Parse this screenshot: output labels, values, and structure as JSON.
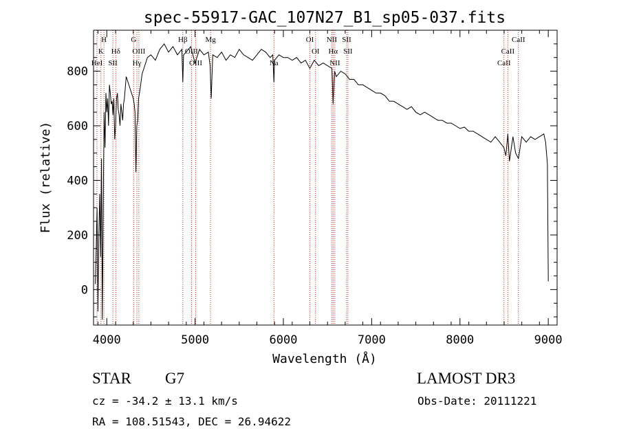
{
  "chart_data": {
    "type": "line",
    "title": "spec-55917-GAC_107N27_B1_sp05-037.fits",
    "xlabel": "Wavelength (Å)",
    "ylabel": "Flux (relative)",
    "xlim": [
      3850,
      9100
    ],
    "ylim": [
      -130,
      950
    ],
    "xticks": [
      4000,
      5000,
      6000,
      7000,
      8000,
      9000
    ],
    "yticks": [
      0,
      200,
      400,
      600,
      800
    ],
    "grid": false,
    "line_color": "#000000",
    "marker_color": "#b03020",
    "series": [
      {
        "x": [
          3870,
          3880,
          3890,
          3900,
          3910,
          3920,
          3930,
          3940,
          3950,
          3960,
          3970,
          3980,
          3990,
          4000,
          4010,
          4020,
          4030,
          4040,
          4050,
          4060,
          4070,
          4080,
          4090,
          4100,
          4110,
          4120,
          4130,
          4140,
          4150,
          4160,
          4170,
          4180,
          4190,
          4200,
          4220,
          4240,
          4260,
          4280,
          4300,
          4310,
          4320,
          4330,
          4340,
          4350,
          4360,
          4380,
          4400,
          4430,
          4460,
          4500,
          4550,
          4600,
          4650,
          4700,
          4750,
          4800,
          4850,
          4861,
          4870,
          4900,
          4950,
          5000,
          5050,
          5100,
          5150,
          5170,
          5183,
          5200,
          5250,
          5300,
          5350,
          5400,
          5450,
          5500,
          5550,
          5600,
          5650,
          5700,
          5750,
          5800,
          5850,
          5880,
          5893,
          5900,
          5950,
          6000,
          6050,
          6100,
          6150,
          6200,
          6250,
          6300,
          6350,
          6400,
          6450,
          6500,
          6550,
          6563,
          6580,
          6600,
          6650,
          6700,
          6750,
          6800,
          6850,
          6900,
          6950,
          7000,
          7050,
          7100,
          7150,
          7200,
          7250,
          7300,
          7350,
          7400,
          7450,
          7500,
          7550,
          7600,
          7650,
          7700,
          7750,
          7800,
          7850,
          7900,
          7950,
          8000,
          8050,
          8100,
          8150,
          8200,
          8250,
          8300,
          8350,
          8400,
          8450,
          8498,
          8520,
          8542,
          8560,
          8600,
          8630,
          8662,
          8700,
          8750,
          8800,
          8850,
          8900,
          8950,
          8970,
          8990,
          9000
        ],
        "y": [
          20,
          150,
          300,
          -80,
          200,
          350,
          120,
          480,
          -110,
          300,
          650,
          520,
          720,
          650,
          700,
          600,
          750,
          720,
          680,
          690,
          640,
          700,
          550,
          600,
          700,
          720,
          660,
          640,
          600,
          680,
          650,
          620,
          680,
          700,
          780,
          760,
          740,
          720,
          700,
          680,
          650,
          430,
          600,
          620,
          700,
          740,
          790,
          820,
          850,
          860,
          840,
          880,
          900,
          870,
          890,
          860,
          880,
          760,
          860,
          870,
          890,
          830,
          880,
          860,
          870,
          820,
          700,
          860,
          850,
          870,
          840,
          860,
          850,
          880,
          860,
          850,
          840,
          860,
          880,
          870,
          850,
          860,
          760,
          840,
          860,
          850,
          850,
          840,
          850,
          830,
          840,
          810,
          840,
          820,
          830,
          820,
          810,
          680,
          800,
          780,
          800,
          790,
          770,
          770,
          750,
          750,
          740,
          730,
          720,
          720,
          710,
          690,
          690,
          680,
          670,
          660,
          670,
          650,
          640,
          650,
          640,
          630,
          620,
          620,
          610,
          610,
          600,
          590,
          595,
          580,
          580,
          570,
          560,
          550,
          540,
          560,
          540,
          520,
          490,
          570,
          470,
          560,
          500,
          480,
          560,
          540,
          560,
          550,
          560,
          570,
          540,
          460,
          30
        ]
      }
    ],
    "line_markers": [
      {
        "label": "H",
        "x": 3968,
        "row": 0
      },
      {
        "label": "K",
        "x": 3934,
        "row": 1
      },
      {
        "label": "Hδ",
        "x": 4102,
        "row": 1
      },
      {
        "label": "HeI",
        "x": 3889,
        "row": 2
      },
      {
        "label": "SII",
        "x": 4069,
        "row": 2
      },
      {
        "label": "G",
        "x": 4305,
        "row": 0
      },
      {
        "label": "OIII",
        "x": 4363,
        "row": 1
      },
      {
        "label": "Hγ",
        "x": 4341,
        "row": 2
      },
      {
        "label": "Hβ",
        "x": 4861,
        "row": 0
      },
      {
        "label": "OIII",
        "x": 4959,
        "row": 1
      },
      {
        "label": "OIII",
        "x": 5007,
        "row": 2
      },
      {
        "label": "Mg",
        "x": 5175,
        "row": 0
      },
      {
        "label": "Na",
        "x": 5893,
        "row": 2
      },
      {
        "label": "OI",
        "x": 6300,
        "row": 0
      },
      {
        "label": "OI",
        "x": 6364,
        "row": 1
      },
      {
        "label": "NII",
        "x": 6548,
        "row": 0
      },
      {
        "label": "SII",
        "x": 6716,
        "row": 0
      },
      {
        "label": "Hα",
        "x": 6563,
        "row": 1
      },
      {
        "label": "SII",
        "x": 6731,
        "row": 1
      },
      {
        "label": "NII",
        "x": 6583,
        "row": 2
      },
      {
        "label": "CaII",
        "x": 8662,
        "row": 0
      },
      {
        "label": "CaII",
        "x": 8542,
        "row": 1
      },
      {
        "label": "CaII",
        "x": 8498,
        "row": 2
      }
    ]
  },
  "info": {
    "class": "STAR",
    "subclass": "G7",
    "survey": "LAMOST DR3",
    "cz": "cz = -34.2 ± 13.1 km/s",
    "obs_date": "Obs-Date: 20111221",
    "coords": "RA = 108.51543, DEC =  26.94622"
  }
}
